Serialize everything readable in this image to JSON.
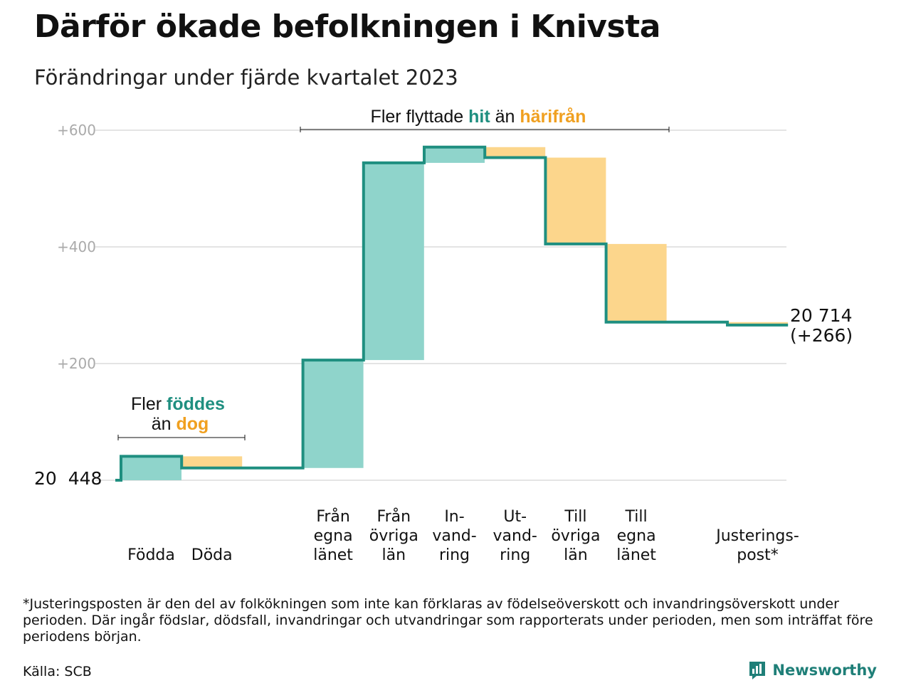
{
  "title": "Därför ökade befolkningen i Knivsta",
  "subtitle": "Förändringar under fjärde kvartalet 2023",
  "footnote": "*Justeringsposten är den del av folkökningen som inte kan förklaras av födelseöverskott och invandringsöverskott under perioden. Där ingår födslar, dödsfall, invandringar och utvandringar som rapporterats under perioden, men som inträffat före periodens början.",
  "source": "Källa: SCB",
  "brand": "Newsworthy",
  "chart_data": {
    "type": "waterfall",
    "start_value": "20  448",
    "end_value": "20 714",
    "end_change": "(+266)",
    "ylim": [
      0,
      600
    ],
    "yticks": [
      {
        "value": 200,
        "label": "+200"
      },
      {
        "value": 400,
        "label": "+400"
      },
      {
        "value": 600,
        "label": "+600"
      }
    ],
    "steps": [
      {
        "label": [
          "Födda"
        ],
        "delta": 41
      },
      {
        "label": [
          "Döda"
        ],
        "delta": -20
      },
      {
        "label": [],
        "delta": 0
      },
      {
        "label": [
          "Från",
          "egna",
          "länet"
        ],
        "delta": 185
      },
      {
        "label": [
          "Från",
          "övriga",
          "län"
        ],
        "delta": 338
      },
      {
        "label": [
          "In-",
          "vand-",
          "ring"
        ],
        "delta": 27
      },
      {
        "label": [
          "Ut-",
          "vand-",
          "ring"
        ],
        "delta": -18
      },
      {
        "label": [
          "Till",
          "övriga",
          "län"
        ],
        "delta": -148
      },
      {
        "label": [
          "Till",
          "egna",
          "länet"
        ],
        "delta": -134
      },
      {
        "label": [],
        "delta": 0
      },
      {
        "label": [
          "Justerings-",
          "post*"
        ],
        "delta": -5
      }
    ],
    "annotations": {
      "births": {
        "line1_prefix": "Fler ",
        "line1_highlight": "föddes",
        "line2_prefix": "än ",
        "line2_highlight": "dog"
      },
      "migration": {
        "prefix": "Fler flyttade ",
        "highlight1": "hit",
        "middle": " än ",
        "highlight2": "härifrån"
      }
    },
    "colors": {
      "increase": "#8fd4cb",
      "decrease": "#fcd68c",
      "line": "#1f8f80",
      "highlight_increase": "#1f8f80",
      "highlight_decrease": "#f0a020",
      "grid": "#e4e4e4"
    }
  }
}
